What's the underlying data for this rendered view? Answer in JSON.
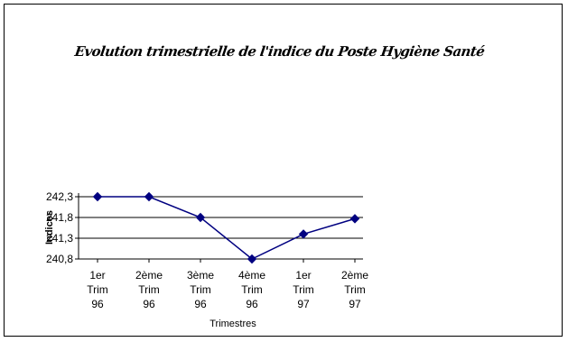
{
  "chart_data": {
    "type": "line",
    "title": "Evolution trimestrielle de l'indice du Poste Hygiène Santé",
    "xlabel": "Trimestres",
    "ylabel": "Indices",
    "categories": [
      [
        "1er",
        "Trim",
        "96"
      ],
      [
        "2ème",
        "Trim",
        "96"
      ],
      [
        "3ème",
        "Trim",
        "96"
      ],
      [
        "4ème",
        "Trim",
        "96"
      ],
      [
        "1er",
        "Trim",
        "97"
      ],
      [
        "2ème",
        "Trim",
        "97"
      ]
    ],
    "values": [
      242.3,
      242.3,
      241.8,
      240.8,
      241.4,
      241.77
    ],
    "ylim": [
      240.8,
      242.3
    ],
    "yticks": [
      240.8,
      241.3,
      241.8,
      242.3
    ],
    "ytick_labels": [
      "240,8",
      "241,3",
      "241,8",
      "242,3"
    ],
    "grid": true,
    "legend": "none",
    "line_color": "#000080",
    "marker": "diamond"
  }
}
